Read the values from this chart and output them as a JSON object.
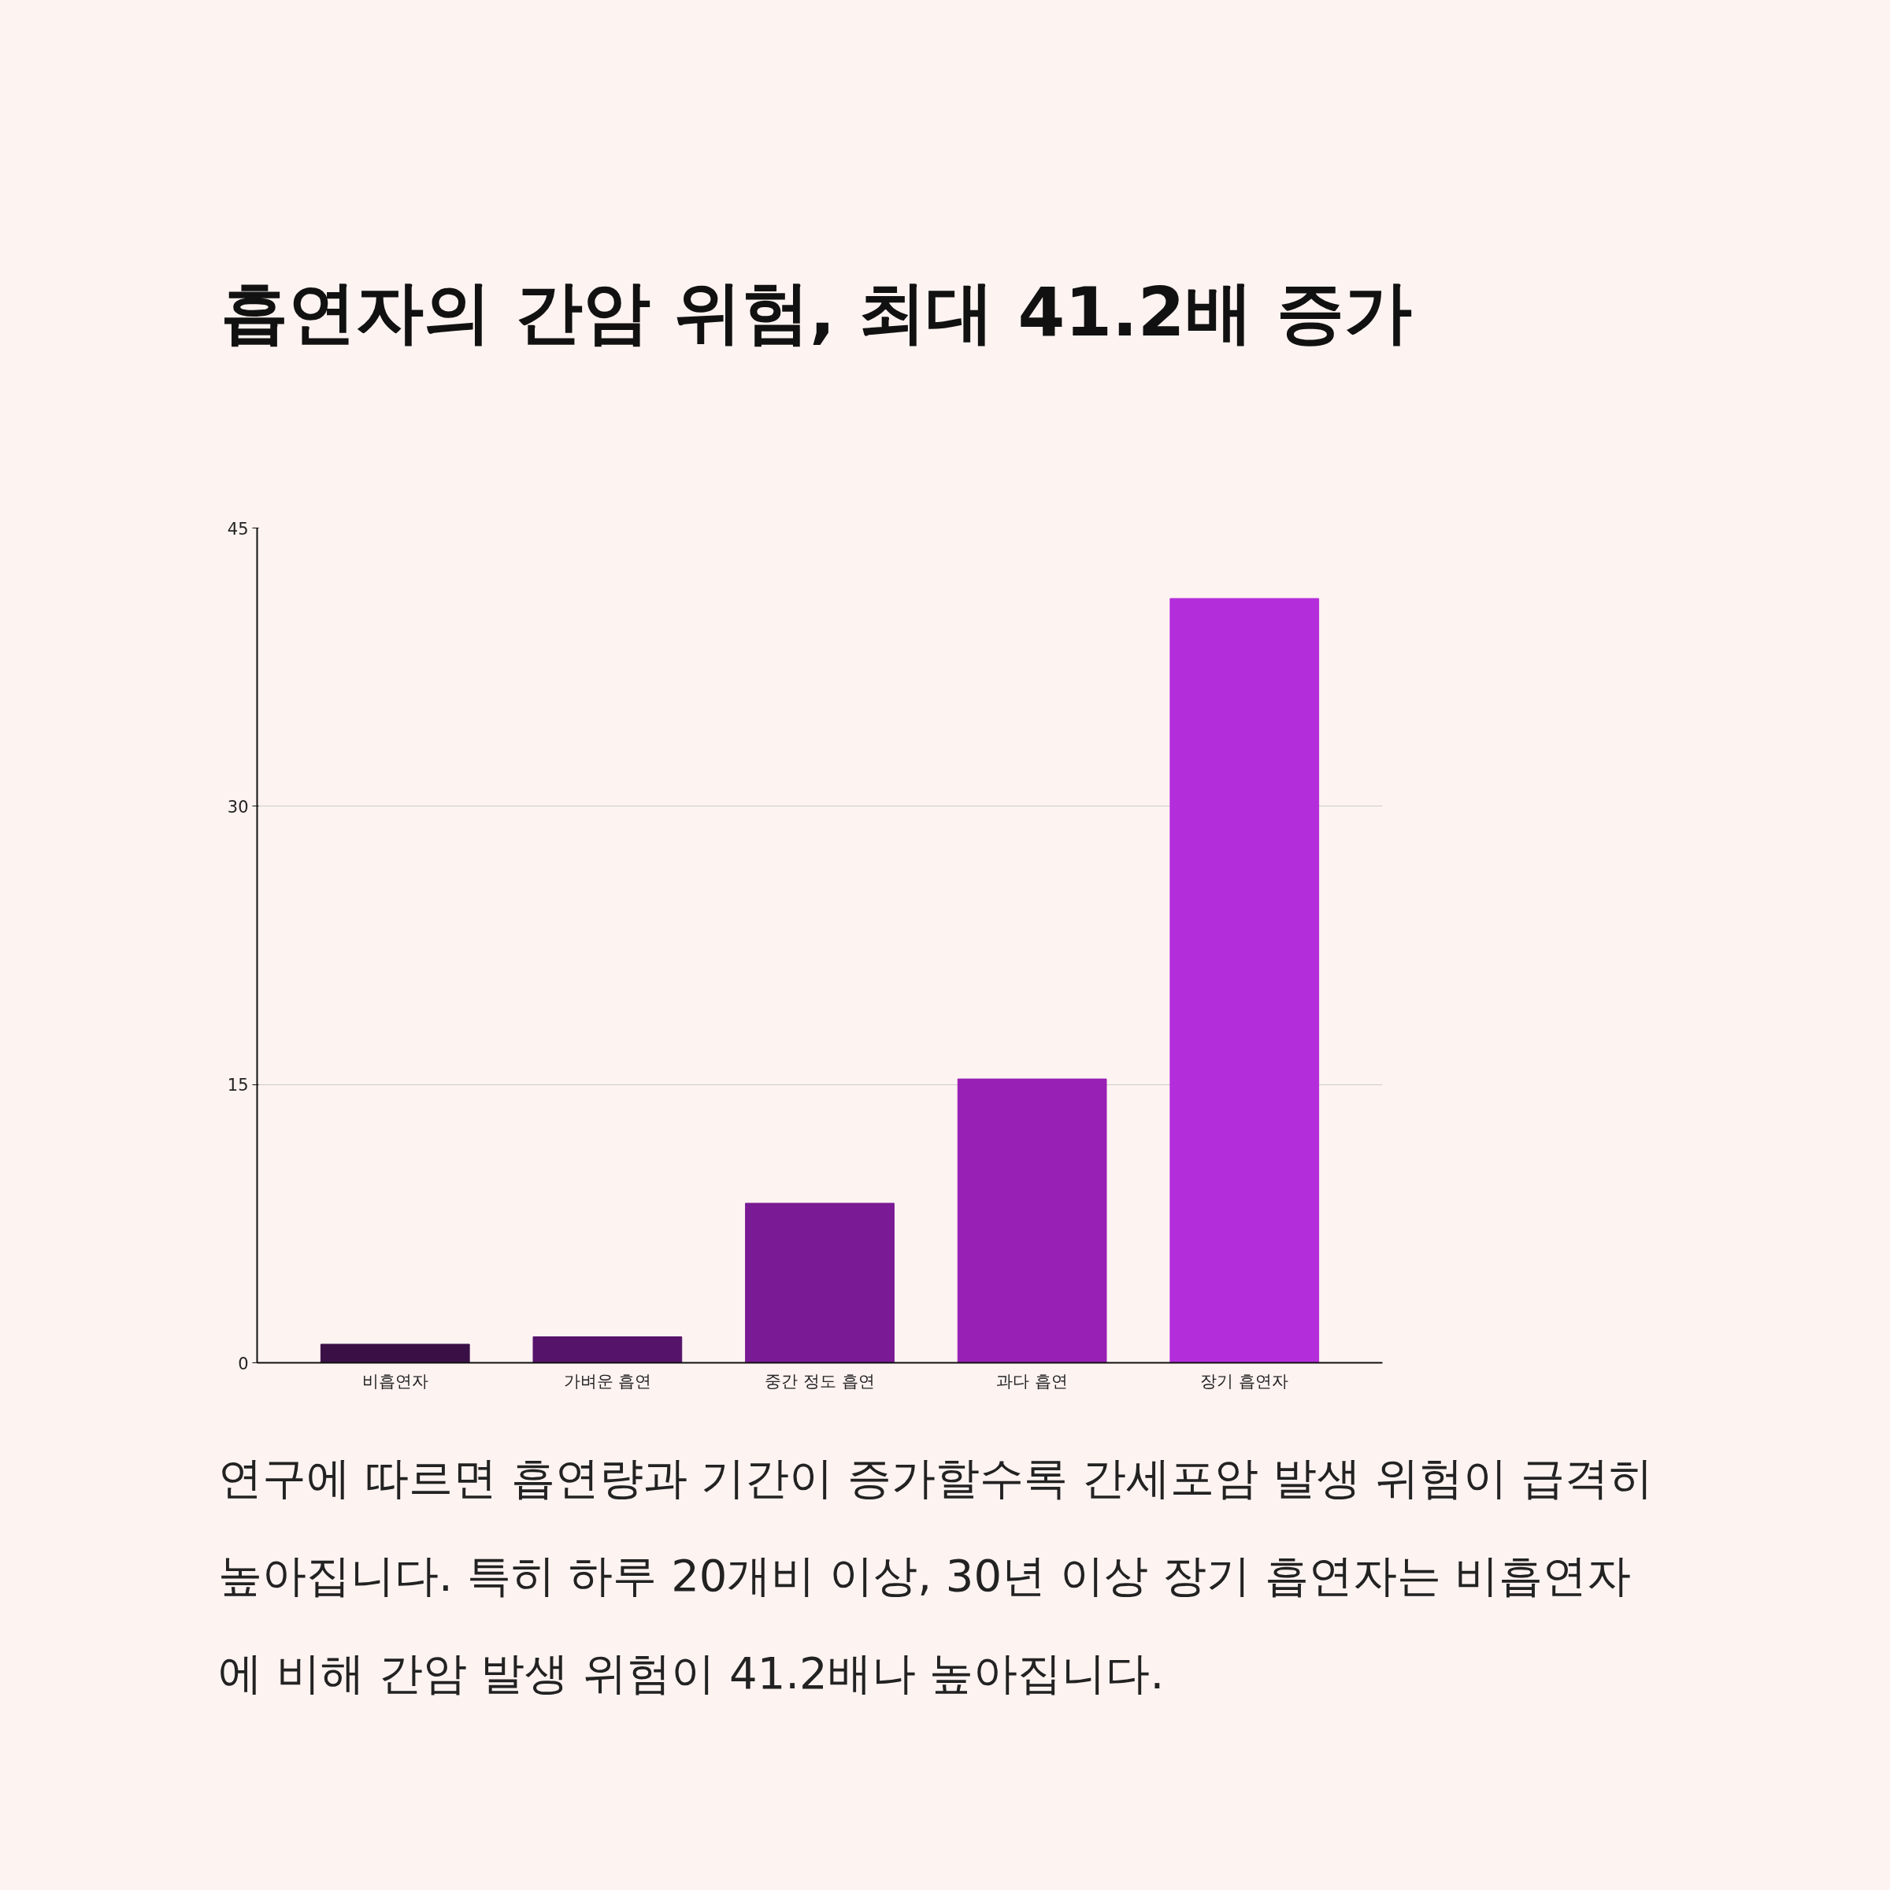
{
  "chart_data": {
    "type": "bar",
    "title": "흡연자의 간암 위험, 최대 41.2배 증가",
    "categories": [
      "비흡연자",
      "가벼운 흡연",
      "중간 정도 흡연",
      "과다 흡연",
      "장기 흡연자"
    ],
    "values": [
      1.0,
      1.4,
      8.6,
      15.3,
      41.2
    ],
    "colors": [
      "#3a0f46",
      "#55136a",
      "#7a1a94",
      "#9820b5",
      "#b42ddb"
    ],
    "ylim": [
      0,
      45
    ],
    "yticks": [
      0,
      15,
      30,
      45
    ],
    "grid": "y",
    "annotations": [
      "연구에 따르면 흡연량과 기간이 증가할수록 간세포암 발생 위험이 급격히 높아집니다. 특히 하루 20개비 이상, 30년 이상 장기 흡연자는 비흡연자에 비해 간암 발생 위험이 41.2배나 높아집니다."
    ]
  }
}
